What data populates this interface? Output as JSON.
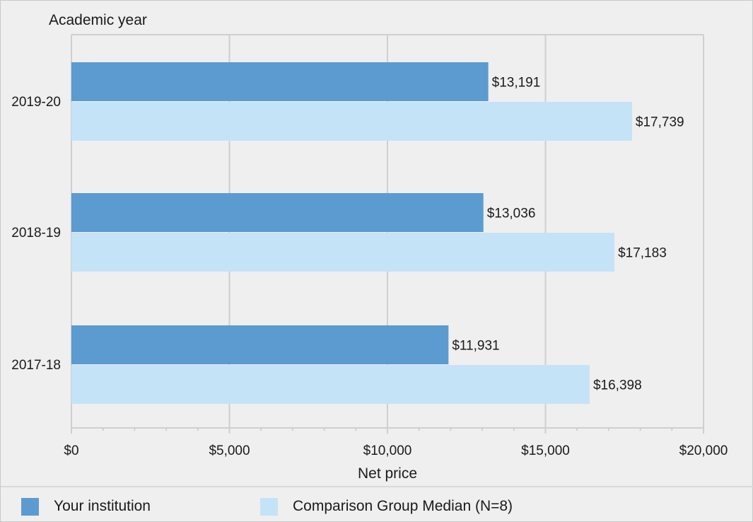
{
  "chart_data": {
    "type": "bar",
    "orientation": "horizontal",
    "categories": [
      "2019-20",
      "2018-19",
      "2017-18"
    ],
    "series": [
      {
        "name": "Your institution",
        "values": [
          13191,
          13036,
          11931
        ]
      },
      {
        "name": "Comparison Group Median (N=8)",
        "values": [
          17739,
          17183,
          16398
        ]
      }
    ],
    "value_labels": [
      [
        "$13,191",
        "$13,036",
        "$11,931"
      ],
      [
        "$17,739",
        "$17,183",
        "$16,398"
      ]
    ],
    "xlabel": "Net price",
    "ylabel": "Academic year",
    "xlim": [
      0,
      20000
    ],
    "x_ticks": [
      0,
      5000,
      10000,
      15000,
      20000
    ],
    "x_tick_labels": [
      "$0",
      "$5,000",
      "$10,000",
      "$15,000",
      "$20,000"
    ],
    "grid": true,
    "legend": "bottom",
    "colors": [
      "#5b9bd0",
      "#c5e3f7"
    ]
  }
}
